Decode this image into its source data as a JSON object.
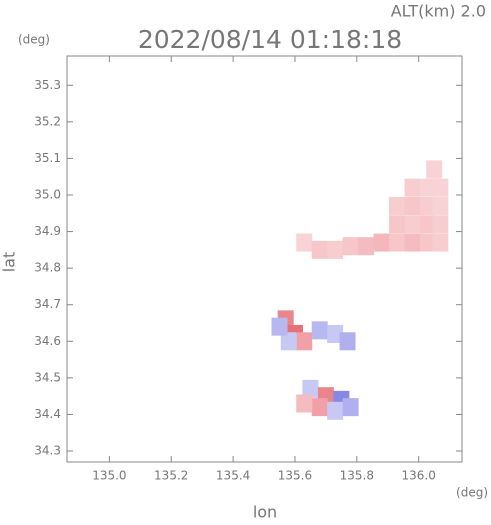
{
  "chart_data": {
    "type": "scatter",
    "altitude_label": "ALT(km) 2.0",
    "y_unit": "(deg)",
    "title": "2022/08/14 01:18:18",
    "y_label": "lat",
    "x_label": "lon",
    "x_unit": "(deg)",
    "xlim": [
      134.863,
      136.14
    ],
    "ylim": [
      34.27,
      35.38
    ],
    "xticks": [
      {
        "value": 135,
        "label": "135.0"
      },
      135.2,
      135.4,
      135.6,
      135.8,
      {
        "value": 136,
        "label": "136.0"
      }
    ],
    "yticks": [
      34.3,
      34.4,
      34.5,
      34.6,
      34.7,
      34.8,
      34.9,
      {
        "value": 35,
        "label": "35.0"
      },
      35.1,
      35.2,
      35.3
    ],
    "x": [
      135.88,
      135.93,
      135.98,
      136.03,
      136.07,
      135.93,
      135.98,
      136.03,
      136.07,
      135.93,
      135.98,
      136.03,
      136.07,
      135.98,
      136.03,
      136.07,
      136.05,
      135.63,
      135.68,
      135.73,
      135.78,
      135.83,
      135.57,
      135.6,
      135.63,
      135.58,
      135.68,
      135.73,
      135.77,
      135.55,
      135.65,
      135.7,
      135.75,
      135.68,
      135.73,
      135.78,
      135.63
    ],
    "values": [
      34.87,
      34.87,
      34.87,
      34.87,
      34.87,
      34.92,
      34.92,
      34.92,
      34.92,
      34.97,
      34.97,
      34.97,
      34.97,
      35.02,
      35.02,
      35.02,
      35.07,
      34.87,
      34.85,
      34.85,
      34.86,
      34.86,
      34.66,
      34.62,
      34.6,
      34.6,
      34.63,
      34.62,
      34.6,
      34.64,
      34.47,
      34.45,
      34.44,
      34.42,
      34.41,
      34.42,
      34.43
    ],
    "colors": [
      "#f4b8bc",
      "#f6c6c8",
      "#f4bcc0",
      "#f6c6c8",
      "#f7cdd0",
      "#f6c6c8",
      "#f7cdd0",
      "#f6c6c8",
      "#f7cdd0",
      "#f7cdd0",
      "#f6c6c8",
      "#f7cdd0",
      "#f8d2d4",
      "#f7cdd0",
      "#f8d2d4",
      "#f8d2d4",
      "#f8d2d4",
      "#f8d2d4",
      "#f6c6c8",
      "#f7cdd0",
      "#f6c6c8",
      "#f4bcc0",
      "#e8868c",
      "#e87078",
      "#f0a0a6",
      "#c8c8f4",
      "#b8b8f0",
      "#c8c8f4",
      "#b0b0ee",
      "#b8b8f0",
      "#c8c8f4",
      "#e8868c",
      "#8888e4",
      "#f0a0a6",
      "#c8c8f4",
      "#b0b0ee",
      "#f4bcc0"
    ]
  }
}
